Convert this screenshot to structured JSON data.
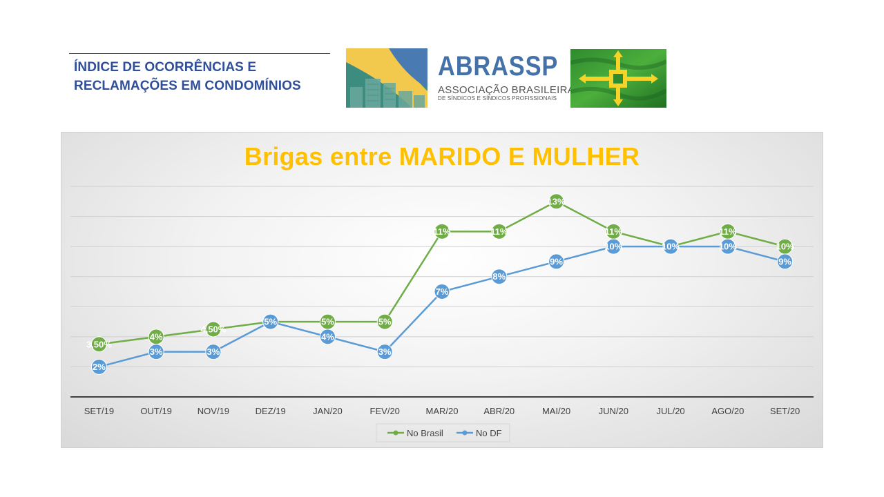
{
  "header": {
    "title_line1": "ÍNDICE DE OCORRÊNCIAS E",
    "title_line2": "RECLAMAÇÕES EM CONDOMÍNIOS"
  },
  "logo": {
    "name": "ABRASSP",
    "subtitle_line1": "ASSOCIAÇÃO BRASILEIRA",
    "subtitle_line2": "DE SÍNDICOS E SÍNDICOS PROFISSIONAIS"
  },
  "colors": {
    "brasil": "#70ad47",
    "df": "#5b9bd5",
    "title": "#ffc000",
    "header": "#2f4f9a"
  },
  "chart_data": {
    "type": "line",
    "title": "Brigas entre MARIDO E MULHER",
    "categories": [
      "SET/19",
      "OUT/19",
      "NOV/19",
      "DEZ/19",
      "JAN/20",
      "FEV/20",
      "MAR/20",
      "ABR/20",
      "MAI/20",
      "JUN/20",
      "JUL/20",
      "AGO/20",
      "SET/20"
    ],
    "series": [
      {
        "name": "No Brasil",
        "values": [
          3.5,
          4,
          4.5,
          5,
          5,
          5,
          11,
          11,
          13,
          11,
          10,
          11,
          10
        ],
        "labels": [
          "3,50%",
          "4%",
          "4,50%",
          "5%",
          "5%",
          "5%",
          "11%",
          "11%",
          "13%",
          "11%",
          "10%",
          "11%",
          "10%"
        ]
      },
      {
        "name": "No DF",
        "values": [
          2,
          3,
          3,
          5,
          4,
          3,
          7,
          8,
          9,
          10,
          10,
          10,
          9
        ],
        "labels": [
          "2%",
          "3%",
          "3%",
          "5%",
          "4%",
          "3%",
          "7%",
          "8%",
          "9%",
          "10%",
          "10%",
          "10%",
          "9%"
        ]
      }
    ],
    "ylim": [
      0,
      14
    ],
    "grid": true,
    "legend": "bottom"
  }
}
